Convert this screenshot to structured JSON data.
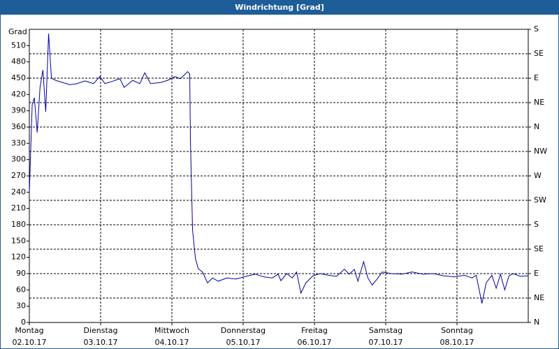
{
  "chart_data": {
    "type": "line",
    "title": "Windrichtung [Grad]",
    "y_label": "Grad",
    "xlim": [
      0,
      7
    ],
    "xticks": [
      {
        "value": 0,
        "label": "Montag"
      },
      {
        "value": 1,
        "label": "Dienstag"
      },
      {
        "value": 2,
        "label": "Mittwoch"
      },
      {
        "value": 3,
        "label": "Donnerstag"
      },
      {
        "value": 4,
        "label": "Freitag"
      },
      {
        "value": 5,
        "label": "Samstag"
      },
      {
        "value": 6,
        "label": "Sonntag"
      }
    ],
    "xtick_dates": [
      "02.10.17",
      "03.10.17",
      "04.10.17",
      "05.10.17",
      "06.10.17",
      "07.10.17",
      "08.10.17"
    ],
    "ylim": [
      0,
      540
    ],
    "yticks": [
      0,
      30,
      60,
      90,
      120,
      150,
      180,
      210,
      240,
      270,
      300,
      330,
      360,
      390,
      420,
      450,
      480,
      510
    ],
    "y2lim": [
      0,
      540
    ],
    "y2ticks": [
      {
        "value": 0,
        "label": "N"
      },
      {
        "value": 45,
        "label": "NE"
      },
      {
        "value": 90,
        "label": "E"
      },
      {
        "value": 135,
        "label": "SE"
      },
      {
        "value": 180,
        "label": "S"
      },
      {
        "value": 225,
        "label": "SW"
      },
      {
        "value": 270,
        "label": "W"
      },
      {
        "value": 315,
        "label": "NW"
      },
      {
        "value": 360,
        "label": "N"
      },
      {
        "value": 405,
        "label": "NE"
      },
      {
        "value": 450,
        "label": "E"
      },
      {
        "value": 495,
        "label": "SE"
      },
      {
        "value": 540,
        "label": "S"
      }
    ],
    "grid": true,
    "series": [
      {
        "name": "Windrichtung",
        "color": "#0000a0",
        "x": [
          0,
          0.04,
          0.07,
          0.11,
          0.15,
          0.19,
          0.23,
          0.27,
          0.31,
          0.37,
          0.47,
          0.57,
          0.67,
          0.78,
          0.9,
          0.99,
          1.06,
          1.16,
          1.27,
          1.33,
          1.45,
          1.55,
          1.62,
          1.7,
          1.84,
          1.94,
          2.04,
          2.12,
          2.22,
          2.25,
          2.26,
          2.29,
          2.33,
          2.37,
          2.43,
          2.5,
          2.57,
          2.65,
          2.77,
          2.9,
          3.04,
          3.17,
          3.29,
          3.41,
          3.49,
          3.53,
          3.61,
          3.69,
          3.75,
          3.81,
          3.88,
          3.98,
          4.08,
          4.2,
          4.31,
          4.42,
          4.49,
          4.56,
          4.61,
          4.69,
          4.75,
          4.81,
          4.88,
          4.95,
          5.08,
          5.23,
          5.37,
          5.52,
          5.67,
          5.81,
          5.96,
          6.11,
          6.21,
          6.27,
          6.35,
          6.41,
          6.49,
          6.55,
          6.61,
          6.67,
          6.73,
          6.79,
          6.89,
          7.0
        ],
        "values": [
          240,
          401,
          414,
          350,
          433,
          465,
          388,
          532,
          450,
          446,
          442,
          438,
          440,
          445,
          440,
          453,
          440,
          444,
          449,
          433,
          446,
          440,
          460,
          440,
          442,
          446,
          453,
          449,
          462,
          458,
          337,
          170,
          118,
          99,
          93,
          73,
          82,
          76,
          82,
          80,
          85,
          89,
          84,
          82,
          89,
          77,
          90,
          82,
          93,
          54,
          73,
          86,
          90,
          87,
          85,
          98,
          89,
          98,
          76,
          112,
          82,
          69,
          80,
          93,
          90,
          89,
          93,
          89,
          90,
          86,
          84,
          87,
          82,
          87,
          35,
          73,
          87,
          63,
          89,
          60,
          86,
          90,
          85,
          86
        ]
      }
    ]
  }
}
